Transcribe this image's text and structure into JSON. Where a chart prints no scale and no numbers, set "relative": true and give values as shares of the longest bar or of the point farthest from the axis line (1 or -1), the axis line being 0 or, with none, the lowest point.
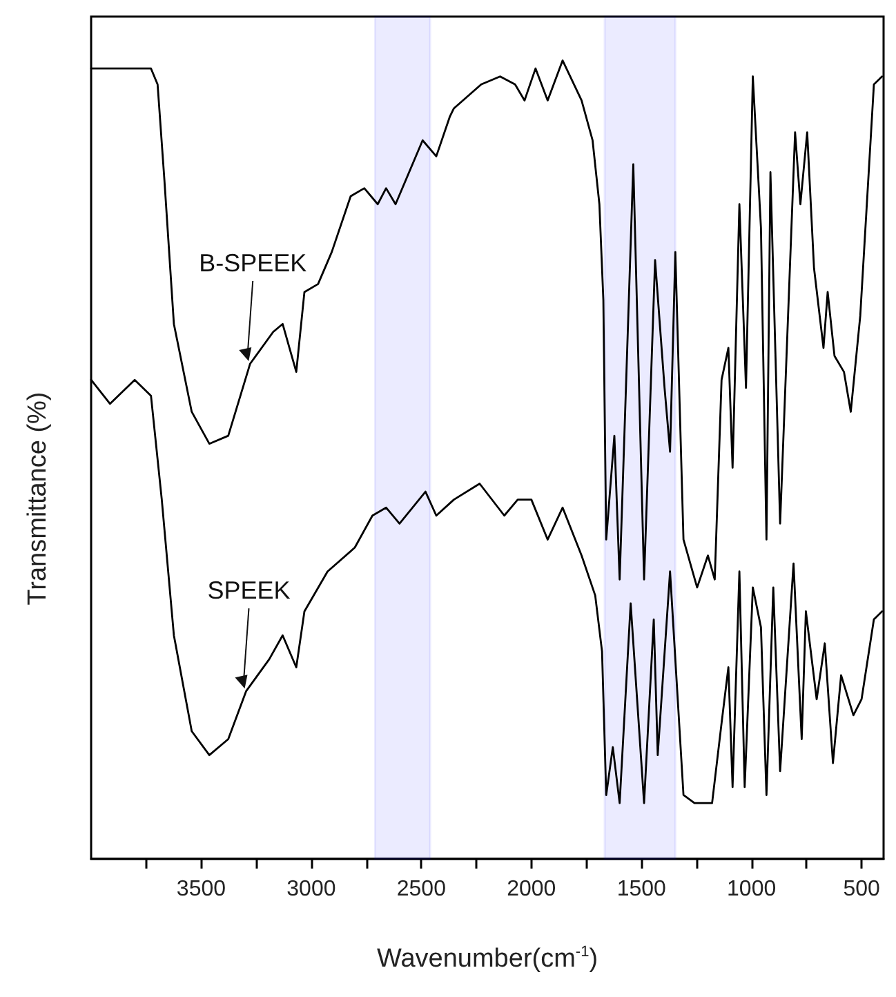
{
  "chart_data": {
    "type": "line",
    "relative": true,
    "xlabel": "Wavenumber(cm$^{-1}$)",
    "ylabel": "Transmittance (%)",
    "xlim": [
      4000,
      400
    ],
    "xticks": [
      {
        "value": 3750,
        "label": null
      },
      3500,
      {
        "value": 3250,
        "label": null
      },
      3000,
      {
        "value": 2750,
        "label": null
      },
      2500,
      {
        "value": 2250,
        "label": null
      },
      2000,
      {
        "value": 1750,
        "label": null
      },
      1500,
      {
        "value": 1250,
        "label": null
      },
      1000,
      {
        "value": 750,
        "label": null
      },
      500
    ],
    "grid": false,
    "legend": false,
    "marker": "none",
    "line_style": "solid",
    "bands": [
      {
        "axis": "x",
        "from": 2710,
        "to": 2460,
        "color": "#0000ff"
      },
      {
        "axis": "x",
        "from": 1667,
        "to": 1346,
        "color": "#0000ff"
      }
    ],
    "series": [
      {
        "name": "B-SPEEK",
        "color": "#000000",
        "x": [
          4000,
          3852,
          3728,
          3698,
          3667,
          3624,
          3543,
          3463,
          3377,
          3278,
          3173,
          3130,
          3068,
          3031,
          2969,
          2907,
          2821,
          2759,
          2698,
          2660,
          2617,
          2494,
          2432,
          2370,
          2352,
          2228,
          2142,
          2074,
          2031,
          1981,
          1926,
          1858,
          1772,
          1722,
          1691,
          1673,
          1660,
          1623,
          1599,
          1537,
          1488,
          1438,
          1395,
          1370,
          1346,
          1309,
          1247,
          1198,
          1167,
          1136,
          1105,
          1086,
          1055,
          1025,
          994,
          957,
          932,
          914,
          870,
          802,
          778,
          747,
          716,
          673,
          654,
          623,
          580,
          549,
          506,
          444,
          407
        ],
        "values": [
          0.99,
          0.99,
          0.99,
          0.97,
          0.85,
          0.67,
          0.56,
          0.52,
          0.53,
          0.62,
          0.66,
          0.67,
          0.61,
          0.71,
          0.72,
          0.76,
          0.83,
          0.84,
          0.82,
          0.84,
          0.82,
          0.9,
          0.88,
          0.93,
          0.94,
          0.97,
          0.98,
          0.97,
          0.95,
          0.99,
          0.95,
          1.0,
          0.95,
          0.9,
          0.82,
          0.7,
          0.4,
          0.53,
          0.35,
          0.87,
          0.35,
          0.75,
          0.59,
          0.51,
          0.76,
          0.4,
          0.34,
          0.38,
          0.35,
          0.6,
          0.64,
          0.49,
          0.82,
          0.59,
          0.98,
          0.79,
          0.4,
          0.86,
          0.42,
          0.91,
          0.82,
          0.91,
          0.74,
          0.64,
          0.71,
          0.63,
          0.61,
          0.56,
          0.68,
          0.97,
          0.98
        ]
      },
      {
        "name": "SPEEK",
        "color": "#000000",
        "x": [
          4000,
          3914,
          3802,
          3728,
          3679,
          3624,
          3543,
          3463,
          3377,
          3296,
          3191,
          3130,
          3068,
          3031,
          2926,
          2802,
          2722,
          2660,
          2599,
          2481,
          2432,
          2352,
          2235,
          2123,
          2062,
          2000,
          1926,
          1858,
          1772,
          1710,
          1679,
          1660,
          1630,
          1599,
          1549,
          1488,
          1444,
          1426,
          1370,
          1309,
          1259,
          1179,
          1136,
          1105,
          1086,
          1055,
          1031,
          994,
          957,
          932,
          901,
          870,
          809,
          772,
          753,
          704,
          667,
          630,
          593,
          537,
          500,
          444,
          407
        ],
        "values": [
          0.6,
          0.57,
          0.6,
          0.58,
          0.45,
          0.28,
          0.16,
          0.13,
          0.15,
          0.21,
          0.25,
          0.28,
          0.24,
          0.31,
          0.36,
          0.39,
          0.43,
          0.44,
          0.42,
          0.46,
          0.43,
          0.45,
          0.47,
          0.43,
          0.45,
          0.45,
          0.4,
          0.44,
          0.38,
          0.33,
          0.26,
          0.08,
          0.14,
          0.07,
          0.32,
          0.07,
          0.3,
          0.13,
          0.36,
          0.08,
          0.07,
          0.07,
          0.17,
          0.24,
          0.09,
          0.36,
          0.09,
          0.34,
          0.29,
          0.08,
          0.34,
          0.11,
          0.37,
          0.15,
          0.31,
          0.2,
          0.27,
          0.12,
          0.23,
          0.18,
          0.2,
          0.3,
          0.31
        ]
      }
    ]
  }
}
